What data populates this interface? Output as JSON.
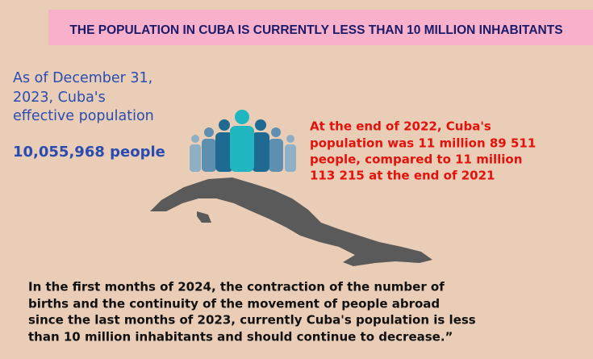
{
  "title": "THE POPULATION IN CUBA IS CURRENTLY LESS THAN 10 MILLION INHABITANTS",
  "left_text": {
    "lines": [
      "As of December 31,",
      "2023, Cuba's",
      "effective population"
    ],
    "highlight": "10,055,968 people"
  },
  "right_text": {
    "lines": [
      "At the end of 2022, Cuba's",
      "population was 11 million 89 511",
      "people, compared to 11 million",
      "113 215 at the end of 2021"
    ]
  },
  "bottom_text": {
    "lines": [
      "In the first months of 2024, the contraction of the number of",
      "births and the continuity of the movement of people abroad",
      "since the last months of 2023, currently Cuba's population is less",
      "than 10 million inhabitants and should continue to decrease.”"
    ]
  }
}
